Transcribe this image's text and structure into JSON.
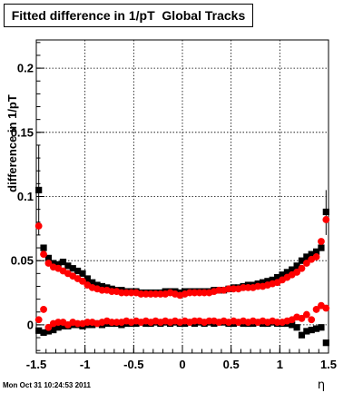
{
  "chart_data": {
    "type": "scatter",
    "title": "Fitted difference in 1/pT  Global Tracks",
    "xlabel": "η",
    "ylabel": "difference in 1/pT",
    "xlim": [
      -1.5,
      1.5
    ],
    "ylim": [
      -0.022,
      0.222
    ],
    "x_ticks": [
      -1.5,
      -1,
      -0.5,
      0,
      0.5,
      1,
      1.5
    ],
    "x_tick_labels": [
      "-1.5",
      "-1",
      "-0.5",
      "0",
      "0.5",
      "1",
      "1.5"
    ],
    "y_ticks": [
      0,
      0.05,
      0.1,
      0.15,
      0.2
    ],
    "y_tick_labels": [
      "0",
      "0.05",
      "0.1",
      "0.15",
      "0.2"
    ],
    "grid": true,
    "marker_styles": [
      "square",
      "circle"
    ],
    "series": [
      {
        "color": "#000000",
        "marker": "square",
        "x": [
          -1.475,
          -1.425,
          -1.375,
          -1.325,
          -1.275,
          -1.225,
          -1.175,
          -1.125,
          -1.075,
          -1.025,
          -0.975,
          -0.925,
          -0.875,
          -0.825,
          -0.775,
          -0.725,
          -0.675,
          -0.625,
          -0.575,
          -0.525,
          -0.475,
          -0.425,
          -0.375,
          -0.325,
          -0.275,
          -0.225,
          -0.175,
          -0.125,
          -0.075,
          -0.025,
          0.025,
          0.075,
          0.125,
          0.175,
          0.225,
          0.275,
          0.325,
          0.375,
          0.425,
          0.475,
          0.525,
          0.575,
          0.625,
          0.675,
          0.725,
          0.775,
          0.825,
          0.875,
          0.925,
          0.975,
          1.025,
          1.075,
          1.125,
          1.175,
          1.225,
          1.275,
          1.325,
          1.375,
          1.425,
          1.475
        ],
        "values": [
          0.105,
          0.06,
          0.052,
          0.048,
          0.047,
          0.049,
          0.046,
          0.044,
          0.042,
          0.04,
          0.036,
          0.033,
          0.031,
          0.03,
          0.029,
          0.028,
          0.027,
          0.027,
          0.026,
          0.026,
          0.026,
          0.025,
          0.025,
          0.025,
          0.025,
          0.025,
          0.026,
          0.026,
          0.026,
          0.025,
          0.026,
          0.026,
          0.026,
          0.026,
          0.026,
          0.026,
          0.027,
          0.027,
          0.027,
          0.028,
          0.029,
          0.029,
          0.03,
          0.031,
          0.031,
          0.032,
          0.033,
          0.034,
          0.035,
          0.037,
          0.039,
          0.041,
          0.043,
          0.046,
          0.05,
          0.053,
          0.055,
          0.057,
          0.06,
          0.088
        ],
        "low": [
          -0.0045,
          -0.006,
          -0.005,
          -0.004,
          -0.002,
          -0.001,
          -0.001,
          0.0,
          0.0,
          -0.001,
          0.0,
          0.0,
          0.001,
          0.0,
          0.001,
          0.001,
          0.001,
          0.0,
          0.001,
          0.001,
          0.001,
          0.002,
          0.001,
          0.001,
          0.002,
          0.001,
          0.002,
          0.001,
          0.002,
          0.001,
          0.001,
          0.002,
          0.001,
          0.002,
          0.001,
          0.002,
          0.001,
          0.002,
          0.002,
          0.001,
          0.001,
          0.002,
          0.001,
          0.001,
          0.001,
          0.002,
          0.001,
          0.001,
          0.002,
          0.001,
          0.001,
          0.001,
          0.0,
          -0.002,
          -0.008,
          -0.005,
          -0.004,
          -0.003,
          -0.002,
          -0.014
        ]
      },
      {
        "color": "#ff0000",
        "marker": "circle",
        "x": [
          -1.475,
          -1.425,
          -1.375,
          -1.325,
          -1.275,
          -1.225,
          -1.175,
          -1.125,
          -1.075,
          -1.025,
          -0.975,
          -0.925,
          -0.875,
          -0.825,
          -0.775,
          -0.725,
          -0.675,
          -0.625,
          -0.575,
          -0.525,
          -0.475,
          -0.425,
          -0.375,
          -0.325,
          -0.275,
          -0.225,
          -0.175,
          -0.125,
          -0.075,
          -0.025,
          0.025,
          0.075,
          0.125,
          0.175,
          0.225,
          0.275,
          0.325,
          0.375,
          0.425,
          0.475,
          0.525,
          0.575,
          0.625,
          0.675,
          0.725,
          0.775,
          0.825,
          0.875,
          0.925,
          0.975,
          1.025,
          1.075,
          1.125,
          1.175,
          1.225,
          1.275,
          1.325,
          1.375,
          1.425,
          1.475
        ],
        "values": [
          0.077,
          0.055,
          0.048,
          0.045,
          0.044,
          0.042,
          0.04,
          0.038,
          0.036,
          0.034,
          0.031,
          0.029,
          0.028,
          0.027,
          0.027,
          0.026,
          0.026,
          0.025,
          0.025,
          0.025,
          0.025,
          0.024,
          0.024,
          0.024,
          0.024,
          0.024,
          0.024,
          0.025,
          0.024,
          0.023,
          0.024,
          0.025,
          0.025,
          0.025,
          0.025,
          0.025,
          0.026,
          0.027,
          0.027,
          0.028,
          0.028,
          0.028,
          0.029,
          0.029,
          0.029,
          0.03,
          0.03,
          0.031,
          0.032,
          0.033,
          0.035,
          0.037,
          0.039,
          0.041,
          0.044,
          0.048,
          0.051,
          0.053,
          0.065,
          0.082
        ],
        "low": [
          0.004,
          0.012,
          -0.002,
          0.001,
          0.002,
          0.002,
          0.0,
          0.002,
          0.001,
          0.001,
          0.002,
          0.002,
          0.001,
          0.002,
          0.003,
          0.002,
          0.002,
          0.002,
          0.003,
          0.002,
          0.003,
          0.002,
          0.003,
          0.002,
          0.003,
          0.002,
          0.003,
          0.002,
          0.003,
          0.002,
          0.003,
          0.002,
          0.003,
          0.003,
          0.002,
          0.003,
          0.003,
          0.002,
          0.003,
          0.002,
          0.003,
          0.002,
          0.003,
          0.002,
          0.003,
          0.002,
          0.003,
          0.002,
          0.003,
          0.002,
          0.002,
          0.003,
          0.004,
          0.006,
          0.005,
          0.008,
          0.004,
          0.012,
          0.015,
          0.013
        ]
      }
    ]
  },
  "footer": {
    "timestamp": "Mon Oct 31 10:24:53 2011"
  }
}
